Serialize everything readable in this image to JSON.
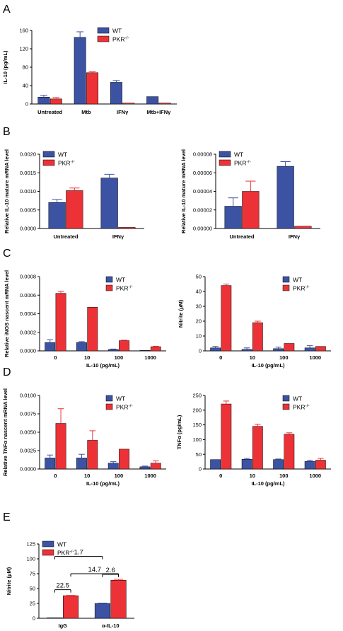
{
  "panels": [
    "A",
    "B",
    "C",
    "D",
    "E"
  ],
  "colors": {
    "wt": "#3c53a4",
    "pkr": "#ec3237",
    "axis": "#000000"
  },
  "chart_data": [
    {
      "id": "A",
      "type": "bar",
      "ylabel": "IL-10 (pg/mL)",
      "xlabel": "",
      "ylim": [
        0,
        160
      ],
      "yticks": [
        "0",
        "40",
        "80",
        "120",
        "160"
      ],
      "categories": [
        "Untreated",
        "Mtb",
        "IFNγ",
        "Mtb+IFNγ"
      ],
      "legend": [
        "WT",
        "PKR-/-"
      ],
      "series": [
        {
          "name": "WT",
          "values": [
            15,
            145,
            47,
            16
          ],
          "errors": [
            4,
            12,
            4,
            0
          ]
        },
        {
          "name": "PKR-/-",
          "values": [
            11,
            68,
            2,
            2
          ],
          "errors": [
            3,
            2,
            0,
            0
          ]
        }
      ]
    },
    {
      "id": "B1",
      "type": "bar",
      "ylabel": "Relative IL-10 mature mRNA level",
      "xlabel": "",
      "ylim": [
        0,
        0.002
      ],
      "yticks": [
        "0.0000",
        "0.0005",
        "0.0010",
        "0.0015",
        "0.0020"
      ],
      "categories": [
        "Untreated",
        "IFNγ"
      ],
      "legend": [
        "WT",
        "PKR-/-"
      ],
      "series": [
        {
          "name": "WT",
          "values": [
            0.0007,
            0.00136
          ],
          "errors": [
            8e-05,
            0.0001
          ]
        },
        {
          "name": "PKR-/-",
          "values": [
            0.00102,
            3e-05
          ],
          "errors": [
            7e-05,
            0
          ]
        }
      ]
    },
    {
      "id": "B2",
      "type": "bar",
      "ylabel": "Relative IL-10 mature mRNA level",
      "xlabel": "",
      "ylim": [
        0,
        8e-05
      ],
      "yticks": [
        "0.00000",
        "0.00002",
        "0.00004",
        "0.00006",
        "0.00008"
      ],
      "categories": [
        "Untreated",
        "IFNγ"
      ],
      "legend": [
        "WT",
        "PKR-/-"
      ],
      "series": [
        {
          "name": "WT",
          "values": [
            2.4e-05,
            6.7e-05
          ],
          "errors": [
            9e-06,
            5e-06
          ]
        },
        {
          "name": "PKR-/-",
          "values": [
            4e-05,
            2.5e-06
          ],
          "errors": [
            1.1e-05,
            0
          ]
        }
      ]
    },
    {
      "id": "C1",
      "type": "bar",
      "ylabel": "Relative iNOS nascent mRNA level",
      "xlabel": "IL-10 (pg/mL)",
      "ylim": [
        0,
        0.0008
      ],
      "yticks": [
        "0.0000",
        "0.0002",
        "0.0004",
        "0.0006",
        "0.0008"
      ],
      "categories": [
        "0",
        "10",
        "100",
        "1000"
      ],
      "legend": [
        "WT",
        "PKR-/-"
      ],
      "series": [
        {
          "name": "WT",
          "values": [
            9e-05,
            9e-05,
            1.5e-05,
            5e-06
          ],
          "errors": [
            3e-05,
            1e-05,
            5e-06,
            0
          ]
        },
        {
          "name": "PKR-/-",
          "values": [
            0.00062,
            0.00047,
            0.00011,
            4.5e-05
          ],
          "errors": [
            2e-05,
            0,
            5e-06,
            5e-06
          ]
        }
      ]
    },
    {
      "id": "C2",
      "type": "bar",
      "ylabel": "Nitrite (μM)",
      "xlabel": "IL-10 (pg/mL)",
      "ylim": [
        0,
        50
      ],
      "yticks": [
        "0",
        "10",
        "20",
        "30",
        "40",
        "50"
      ],
      "categories": [
        "0",
        "10",
        "100",
        "1000"
      ],
      "legend": [
        "WT",
        "PKR-/-"
      ],
      "series": [
        {
          "name": "WT",
          "values": [
            2,
            1,
            1.5,
            2
          ],
          "errors": [
            1,
            1,
            1,
            1.5
          ]
        },
        {
          "name": "PKR-/-",
          "values": [
            44,
            19,
            5,
            3
          ],
          "errors": [
            1,
            1,
            0,
            0
          ]
        }
      ]
    },
    {
      "id": "D1",
      "type": "bar",
      "ylabel": "Relative TNFα nascent mRNA level",
      "xlabel": "IL-10 (pg/mL)",
      "ylim": [
        0,
        0.01
      ],
      "yticks": [
        "0.0000",
        "0.0025",
        "0.0050",
        "0.0075",
        "0.0100"
      ],
      "categories": [
        "0",
        "10",
        "100",
        "1000"
      ],
      "legend": [
        "WT",
        "PKR-/-"
      ],
      "series": [
        {
          "name": "WT",
          "values": [
            0.0015,
            0.0015,
            0.0008,
            0.0003
          ],
          "errors": [
            0.0004,
            0.0005,
            0.0002,
            0.0001
          ]
        },
        {
          "name": "PKR-/-",
          "values": [
            0.0062,
            0.0039,
            0.0027,
            0.0008
          ],
          "errors": [
            0.002,
            0.0013,
            0,
            0.0003
          ]
        }
      ]
    },
    {
      "id": "D2",
      "type": "bar",
      "ylabel": "TNFα (pg/mL)",
      "xlabel": "IL-10 (pg/mL)",
      "ylim": [
        0,
        250
      ],
      "yticks": [
        "0",
        "50",
        "100",
        "150",
        "200",
        "250"
      ],
      "categories": [
        "0",
        "10",
        "100",
        "1000"
      ],
      "legend": [
        "WT",
        "PKR-/-"
      ],
      "series": [
        {
          "name": "WT",
          "values": [
            32,
            33,
            32,
            26
          ],
          "errors": [
            0,
            3,
            2,
            4
          ]
        },
        {
          "name": "PKR-/-",
          "values": [
            221,
            145,
            118,
            30
          ],
          "errors": [
            10,
            7,
            5,
            6
          ]
        }
      ]
    },
    {
      "id": "E",
      "type": "bar",
      "ylabel": "Nitrite (μM)",
      "xlabel": "",
      "ylim": [
        0,
        125
      ],
      "yticks": [
        "0",
        "25",
        "50",
        "75",
        "100",
        "125"
      ],
      "categories": [
        "IgG",
        "α-IL-10"
      ],
      "legend": [
        "WT",
        "PKR-/-"
      ],
      "series": [
        {
          "name": "WT",
          "values": [
            1,
            25
          ],
          "errors": [
            0,
            0.5
          ]
        },
        {
          "name": "PKR-/-",
          "values": [
            38,
            64
          ],
          "errors": [
            0.5,
            1.5
          ]
        }
      ],
      "annotations": [
        {
          "text": "22.5",
          "from": [
            0,
            0
          ],
          "to": [
            0,
            1
          ],
          "y": 48
        },
        {
          "text": "2.6",
          "from": [
            1,
            0
          ],
          "to": [
            1,
            1
          ],
          "y": 74
        },
        {
          "text": "14.7",
          "from": [
            0,
            1
          ],
          "to": [
            1,
            1
          ],
          "y": 75
        },
        {
          "text": "1.7",
          "from": [
            0,
            0
          ],
          "to": [
            1,
            0
          ],
          "y": 104
        }
      ]
    }
  ]
}
